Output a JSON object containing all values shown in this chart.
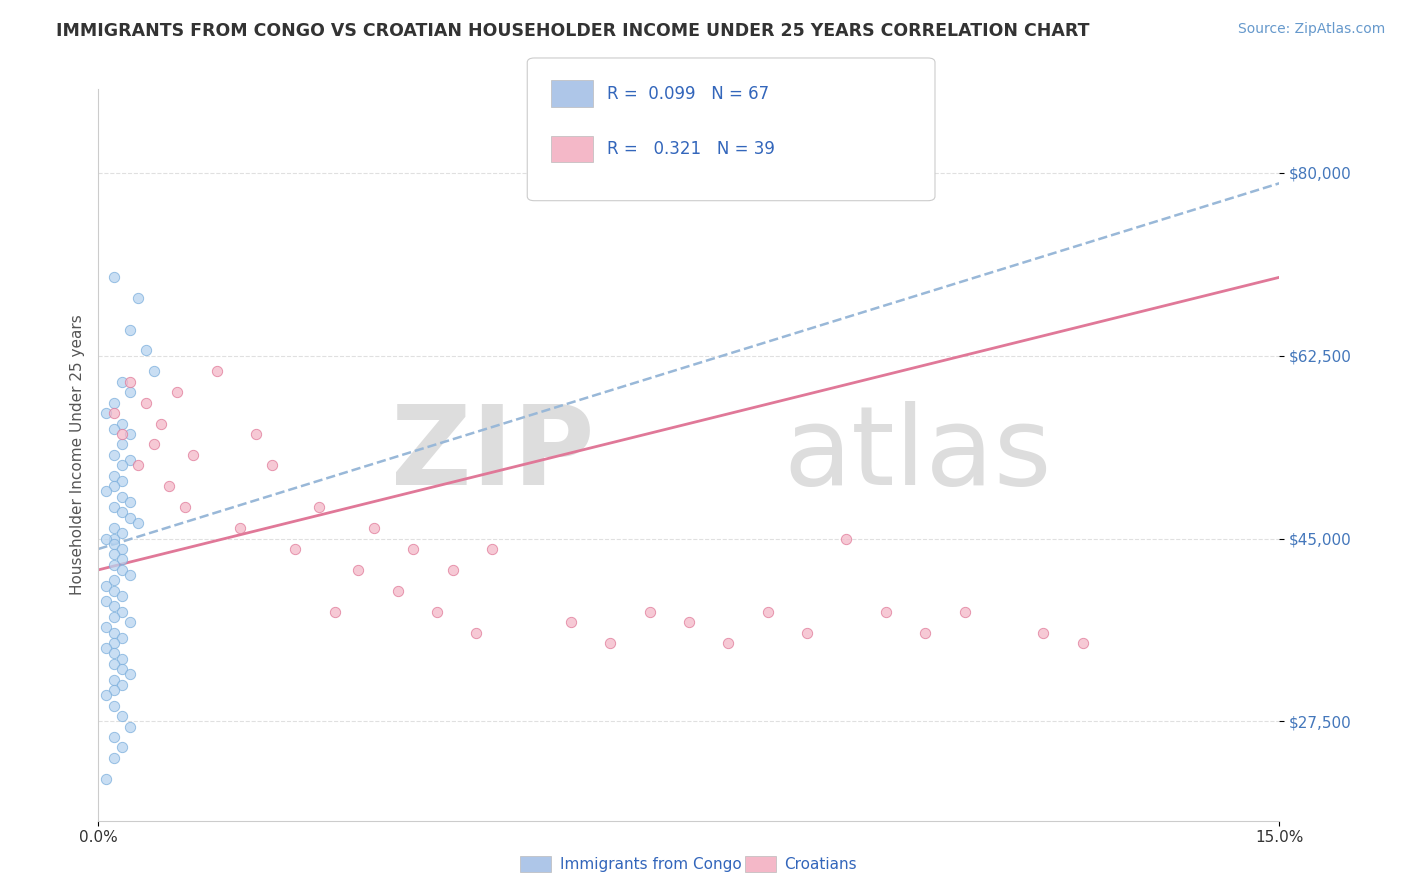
{
  "title": "IMMIGRANTS FROM CONGO VS CROATIAN HOUSEHOLDER INCOME UNDER 25 YEARS CORRELATION CHART",
  "source": "Source: ZipAtlas.com",
  "xlabel": "",
  "ylabel": "Householder Income Under 25 years",
  "xlim": [
    0.0,
    0.15
  ],
  "ylim": [
    18000,
    88000
  ],
  "yticks": [
    27500,
    45000,
    62500,
    80000
  ],
  "ytick_labels": [
    "$27,500",
    "$45,000",
    "$62,500",
    "$80,000"
  ],
  "xticks": [
    0.0,
    0.15
  ],
  "xtick_labels": [
    "0.0%",
    "15.0%"
  ],
  "legend_items": [
    {
      "label": "R =  0.099   N = 67",
      "color": "#aec6e8"
    },
    {
      "label": "R =   0.321   N = 39",
      "color": "#f4b8c8"
    }
  ],
  "legend_bottom": [
    {
      "label": "Immigrants from Congo",
      "color": "#aec6e8"
    },
    {
      "label": "Croatians",
      "color": "#f4b8c8"
    }
  ],
  "congo_scatter": {
    "x": [
      0.002,
      0.005,
      0.004,
      0.006,
      0.007,
      0.003,
      0.004,
      0.002,
      0.001,
      0.003,
      0.002,
      0.004,
      0.003,
      0.002,
      0.004,
      0.003,
      0.002,
      0.003,
      0.002,
      0.001,
      0.003,
      0.004,
      0.002,
      0.003,
      0.004,
      0.005,
      0.002,
      0.003,
      0.002,
      0.001,
      0.002,
      0.003,
      0.002,
      0.003,
      0.002,
      0.003,
      0.004,
      0.002,
      0.001,
      0.002,
      0.003,
      0.001,
      0.002,
      0.003,
      0.002,
      0.004,
      0.001,
      0.002,
      0.003,
      0.002,
      0.001,
      0.002,
      0.003,
      0.002,
      0.003,
      0.004,
      0.002,
      0.003,
      0.002,
      0.001,
      0.002,
      0.003,
      0.004,
      0.002,
      0.003,
      0.002,
      0.001
    ],
    "y": [
      70000,
      68000,
      65000,
      63000,
      61000,
      60000,
      59000,
      58000,
      57000,
      56000,
      55500,
      55000,
      54000,
      53000,
      52500,
      52000,
      51000,
      50500,
      50000,
      49500,
      49000,
      48500,
      48000,
      47500,
      47000,
      46500,
      46000,
      45500,
      45000,
      45000,
      44500,
      44000,
      43500,
      43000,
      42500,
      42000,
      41500,
      41000,
      40500,
      40000,
      39500,
      39000,
      38500,
      38000,
      37500,
      37000,
      36500,
      36000,
      35500,
      35000,
      34500,
      34000,
      33500,
      33000,
      32500,
      32000,
      31500,
      31000,
      30500,
      30000,
      29000,
      28000,
      27000,
      26000,
      25000,
      24000,
      22000
    ],
    "color": "#b8d4f0",
    "edgecolor": "#7aaedc",
    "size": 55
  },
  "croatian_scatter": {
    "x": [
      0.002,
      0.003,
      0.004,
      0.005,
      0.006,
      0.007,
      0.008,
      0.009,
      0.01,
      0.011,
      0.012,
      0.015,
      0.018,
      0.02,
      0.022,
      0.025,
      0.028,
      0.03,
      0.033,
      0.035,
      0.038,
      0.04,
      0.043,
      0.045,
      0.048,
      0.05,
      0.06,
      0.065,
      0.07,
      0.075,
      0.08,
      0.085,
      0.09,
      0.095,
      0.1,
      0.105,
      0.11,
      0.12,
      0.125
    ],
    "y": [
      57000,
      55000,
      60000,
      52000,
      58000,
      54000,
      56000,
      50000,
      59000,
      48000,
      53000,
      61000,
      46000,
      55000,
      52000,
      44000,
      48000,
      38000,
      42000,
      46000,
      40000,
      44000,
      38000,
      42000,
      36000,
      44000,
      37000,
      35000,
      38000,
      37000,
      35000,
      38000,
      36000,
      45000,
      38000,
      36000,
      38000,
      36000,
      35000
    ],
    "color": "#f4b8c8",
    "edgecolor": "#e07898",
    "size": 55
  },
  "congo_trend": {
    "x": [
      0.0,
      0.15
    ],
    "y": [
      44000,
      79000
    ],
    "color": "#99b8d8",
    "linestyle": "dashed",
    "linewidth": 1.8
  },
  "croatian_trend": {
    "x": [
      0.0,
      0.15
    ],
    "y": [
      42000,
      70000
    ],
    "color": "#e07898",
    "linestyle": "solid",
    "linewidth": 2.0
  },
  "title_color": "#333333",
  "title_fontsize": 12.5,
  "source_color": "#6699cc",
  "source_fontsize": 10,
  "ylabel_color": "#555555",
  "ylabel_fontsize": 11,
  "ytick_color": "#4477bb",
  "xtick_color": "#333333",
  "grid_color": "#e0e0e0",
  "background_color": "#ffffff"
}
